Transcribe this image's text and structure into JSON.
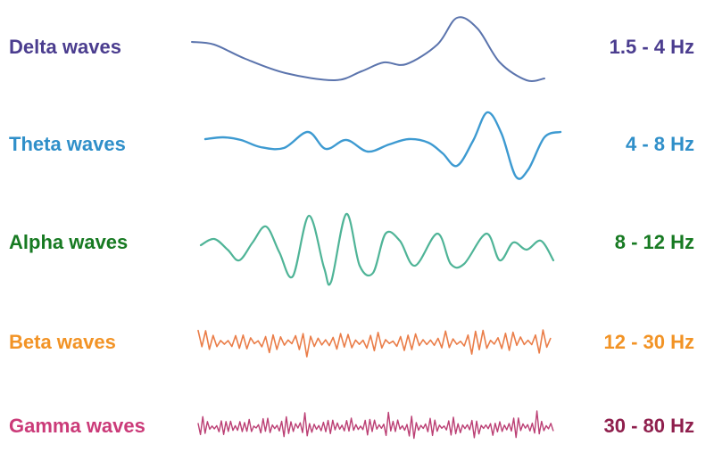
{
  "rows": [
    {
      "name": "Delta waves",
      "range": "1.5 - 4 Hz",
      "color": "#4b3d8f",
      "wave_color": "#5b74ad"
    },
    {
      "name": "Theta waves",
      "range": "4 - 8 Hz",
      "color": "#2f8fc9",
      "wave_color": "#3d9ad1"
    },
    {
      "name": "Alpha waves",
      "range": "8 - 12 Hz",
      "color": "#177a22",
      "wave_color": "#4fb497"
    },
    {
      "name": "Beta waves",
      "range": "12 - 30 Hz",
      "color": "#f29325",
      "wave_color": "#ea7d48"
    },
    {
      "name": "Gamma waves",
      "range": "30 - 80 Hz",
      "color": "#cb3b79",
      "wave_color": "#bb3f74",
      "range_color": "#8f1f4d"
    }
  ]
}
